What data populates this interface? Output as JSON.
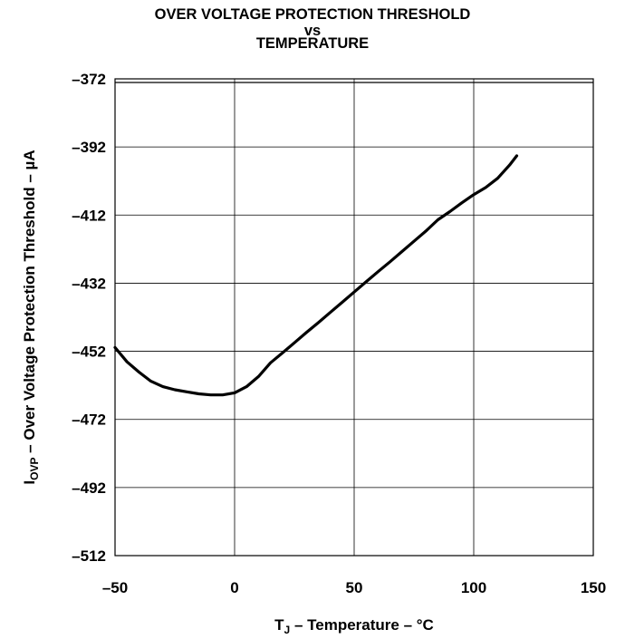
{
  "chart_data": {
    "type": "line",
    "title_lines": [
      "OVER VOLTAGE PROTECTION THRESHOLD",
      "vs",
      "TEMPERATURE"
    ],
    "xlabel": {
      "main": "T",
      "sub": "J",
      "rest": " – Temperature – °C"
    },
    "ylabel": {
      "main": "I",
      "sub": "OVP",
      "rest": " – Over Voltage Protection Threshold – µA"
    },
    "xlim": [
      -50,
      150
    ],
    "ylim": [
      -512,
      -372
    ],
    "x_ticks": [
      -50,
      0,
      50,
      100,
      150
    ],
    "x_tick_labels": [
      "–50",
      "0",
      "50",
      "100",
      "150"
    ],
    "y_ticks": [
      -372,
      -392,
      -412,
      -432,
      -452,
      -472,
      -492,
      -512
    ],
    "y_tick_labels": [
      "–372",
      "–392",
      "–412",
      "–432",
      "–452",
      "–472",
      "–492",
      "–512"
    ],
    "grid": true,
    "series": [
      {
        "color": "#000000",
        "x": [
          -50,
          -45,
          -40,
          -35,
          -30,
          -25,
          -20,
          -15,
          -10,
          -5,
          0,
          5,
          10,
          15,
          20,
          25,
          30,
          35,
          40,
          45,
          50,
          55,
          60,
          65,
          70,
          75,
          80,
          85,
          90,
          95,
          100,
          105,
          110,
          115,
          118
        ],
        "y": [
          -450.9,
          -455.1,
          -458.1,
          -460.8,
          -462.4,
          -463.3,
          -463.9,
          -464.5,
          -464.8,
          -464.8,
          -464.2,
          -462.4,
          -459.4,
          -455.4,
          -452.5,
          -449.5,
          -446.5,
          -443.6,
          -440.6,
          -437.6,
          -434.6,
          -431.6,
          -428.6,
          -425.7,
          -422.7,
          -419.7,
          -416.7,
          -413.4,
          -411.0,
          -408.4,
          -406.0,
          -403.9,
          -401.2,
          -397.3,
          -394.6
        ]
      }
    ]
  }
}
